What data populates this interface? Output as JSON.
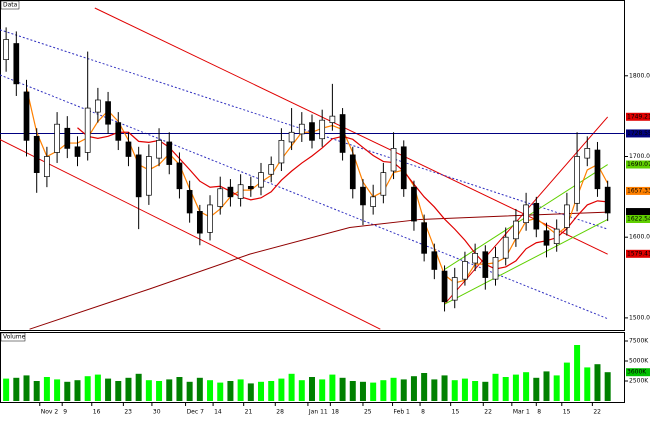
{
  "chart_data": {
    "type": "candlestick",
    "title": "Data",
    "volume_title": "Volume",
    "x": [
      0,
      1,
      2,
      3,
      4,
      5,
      6,
      7,
      8,
      9,
      10,
      11,
      12,
      13,
      14,
      15,
      16,
      17,
      18,
      19,
      20,
      21,
      22,
      23,
      24,
      25,
      26,
      27,
      28,
      29,
      30,
      31,
      32,
      33,
      34,
      35,
      36,
      37,
      38,
      39,
      40,
      41,
      42,
      43,
      44,
      45,
      46,
      47,
      48,
      49,
      50,
      51,
      52,
      53,
      54,
      55,
      56,
      57,
      58,
      59
    ],
    "open": [
      1820,
      1840,
      1780,
      1725,
      1675,
      1705,
      1735,
      1712,
      1705,
      1755,
      1768,
      1742,
      1718,
      1702,
      1652,
      1698,
      1718,
      1692,
      1658,
      1632,
      1606,
      1638,
      1662,
      1648,
      1663,
      1662,
      1678,
      1692,
      1718,
      1728,
      1742,
      1722,
      1742,
      1752,
      1702,
      1662,
      1638,
      1652,
      1682,
      1712,
      1662,
      1618,
      1582,
      1558,
      1522,
      1548,
      1568,
      1582,
      1548,
      1574,
      1598,
      1618,
      1642,
      1608,
      1592,
      1612,
      1642,
      1698,
      1708,
      1662
    ],
    "high": [
      1860,
      1855,
      1795,
      1735,
      1712,
      1755,
      1750,
      1725,
      1830,
      1785,
      1780,
      1755,
      1730,
      1712,
      1715,
      1735,
      1730,
      1705,
      1670,
      1640,
      1652,
      1675,
      1672,
      1678,
      1675,
      1692,
      1700,
      1735,
      1760,
      1755,
      1752,
      1758,
      1790,
      1760,
      1712,
      1672,
      1665,
      1692,
      1730,
      1720,
      1670,
      1628,
      1592,
      1565,
      1562,
      1582,
      1592,
      1590,
      1588,
      1612,
      1635,
      1655,
      1650,
      1618,
      1622,
      1655,
      1730,
      1725,
      1718,
      1670
    ],
    "low": [
      1805,
      1775,
      1700,
      1655,
      1662,
      1692,
      1698,
      1688,
      1695,
      1742,
      1728,
      1708,
      1688,
      1610,
      1640,
      1688,
      1678,
      1648,
      1618,
      1590,
      1596,
      1628,
      1638,
      1638,
      1650,
      1652,
      1668,
      1682,
      1708,
      1718,
      1710,
      1712,
      1732,
      1695,
      1648,
      1615,
      1628,
      1642,
      1672,
      1650,
      1608,
      1570,
      1548,
      1508,
      1512,
      1540,
      1558,
      1535,
      1540,
      1565,
      1588,
      1608,
      1600,
      1575,
      1582,
      1602,
      1632,
      1688,
      1650,
      1620
    ],
    "close": [
      1845,
      1790,
      1720,
      1680,
      1700,
      1740,
      1710,
      1700,
      1760,
      1770,
      1740,
      1720,
      1700,
      1650,
      1700,
      1720,
      1690,
      1660,
      1630,
      1605,
      1640,
      1660,
      1650,
      1665,
      1660,
      1680,
      1690,
      1720,
      1730,
      1740,
      1720,
      1745,
      1750,
      1705,
      1660,
      1640,
      1650,
      1680,
      1710,
      1660,
      1620,
      1580,
      1560,
      1520,
      1550,
      1570,
      1580,
      1550,
      1575,
      1600,
      1620,
      1640,
      1610,
      1590,
      1610,
      1640,
      1700,
      1710,
      1660,
      1630
    ],
    "volume": [
      2800,
      2900,
      3200,
      2500,
      3000,
      2700,
      2400,
      2600,
      3100,
      3300,
      2800,
      2500,
      2900,
      3400,
      2600,
      2500,
      2700,
      3000,
      2400,
      2900,
      2600,
      2300,
      2500,
      2700,
      2200,
      2400,
      2500,
      2800,
      3400,
      2600,
      3000,
      2700,
      3300,
      2900,
      2500,
      2400,
      2300,
      2600,
      2900,
      2700,
      3100,
      3500,
      2700,
      3200,
      2600,
      2800,
      2500,
      2400,
      3400,
      3000,
      3300,
      3600,
      2900,
      3700,
      3200,
      4800,
      7000,
      4200,
      4600,
      3600
    ],
    "up_color": "#ffffff",
    "down_color": "#000000",
    "volume_up_color": "#00ff00",
    "volume_down_color": "#008000",
    "ma_fast": {
      "period": 3,
      "color": "#ff8000"
    },
    "ma_slow": {
      "period": 8,
      "color": "#e00000"
    },
    "xlim": [
      -0.6,
      60.7
    ],
    "ylim": [
      1485,
      1884
    ],
    "vylim": [
      0,
      8500
    ],
    "yticks": [
      {
        "value": 1800,
        "label": "1800.00"
      },
      {
        "value": 1700,
        "label": "1700.00"
      },
      {
        "value": 1600,
        "label": "1600.00"
      },
      {
        "value": 1500,
        "label": "1500.00"
      }
    ],
    "vyticks": [
      {
        "value": 7500,
        "label": "7500K"
      },
      {
        "value": 5000,
        "label": "5000K"
      },
      {
        "value": 2500,
        "label": "2500K"
      }
    ],
    "xticks": [
      {
        "value": 3.3,
        "label": "Nov 2"
      },
      {
        "value": 5.5,
        "label": "9"
      },
      {
        "value": 8.4,
        "label": "16"
      },
      {
        "value": 11.5,
        "label": "23"
      },
      {
        "value": 14.3,
        "label": "30"
      },
      {
        "value": 17.6,
        "label": "Dec 7"
      },
      {
        "value": 20.3,
        "label": "14"
      },
      {
        "value": 23.3,
        "label": "21"
      },
      {
        "value": 26.4,
        "label": "28"
      },
      {
        "value": 29.6,
        "label": "Jan 11"
      },
      {
        "value": 31.8,
        "label": "18"
      },
      {
        "value": 35,
        "label": "25"
      },
      {
        "value": 37.9,
        "label": "Feb 1"
      },
      {
        "value": 40.6,
        "label": "8"
      },
      {
        "value": 43.6,
        "label": "15"
      },
      {
        "value": 46.8,
        "label": "22"
      },
      {
        "value": 49.6,
        "label": "Mar 1"
      },
      {
        "value": 52,
        "label": "8"
      },
      {
        "value": 54.5,
        "label": "15"
      },
      {
        "value": 57.5,
        "label": "22"
      }
    ],
    "lines": [
      {
        "color": "#e00000",
        "dash": false,
        "x": [
          8.7,
          59
        ],
        "y": [
          1884,
          1579
        ]
      },
      {
        "color": "#e00000",
        "dash": false,
        "x": [
          -0.6,
          36.7
        ],
        "y": [
          1721,
          1486
        ]
      },
      {
        "color": "#e00000",
        "dash": false,
        "x": [
          43,
          59
        ],
        "y": [
          1517,
          1749
        ]
      },
      {
        "color": "#3030c0",
        "dash": true,
        "x": [
          -0.6,
          59
        ],
        "y": [
          1857,
          1610
        ]
      },
      {
        "color": "#3030c0",
        "dash": true,
        "x": [
          -0.6,
          59
        ],
        "y": [
          1801,
          1499
        ]
      },
      {
        "color": "#60d000",
        "dash": false,
        "x": [
          43,
          59
        ],
        "y": [
          1517,
          1622
        ]
      },
      {
        "color": "#60d000",
        "dash": false,
        "x": [
          43,
          59
        ],
        "y": [
          1560,
          1690
        ]
      },
      {
        "color": "#900000",
        "dash": false,
        "x": [
          2.3,
          14.1,
          23.9,
          33.7,
          40.6,
          48.4,
          59
        ],
        "y": [
          1486,
          1536,
          1579,
          1612,
          1622,
          1626,
          1631
        ]
      }
    ],
    "hline": {
      "value": 1728.55,
      "color": "#000080"
    },
    "price_tags": [
      {
        "value": 1749.21,
        "color": "#e00000"
      },
      {
        "value": 1728.55,
        "color": "#000080"
      },
      {
        "value": 1690.07,
        "color": "#60d000"
      },
      {
        "value": 1657.33,
        "color": "#ff8000"
      },
      {
        "value": 1631.16,
        "color": "#000000"
      },
      {
        "value": 1622.54,
        "color": "#60d000"
      },
      {
        "value": 1579.41,
        "color": "#e00000"
      }
    ],
    "volume_tag": {
      "value": 3600,
      "label": "3600K",
      "color": "#00c000"
    }
  }
}
